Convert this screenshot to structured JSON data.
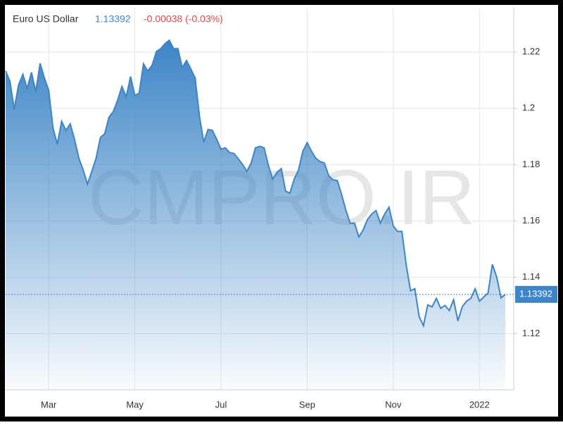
{
  "chart_data": {
    "type": "area",
    "title": "Euro US Dollar",
    "change": "-0.00038 (-0.03%)",
    "watermark": "CMPRO.IR",
    "color": "#3d85c6",
    "categories": [
      null,
      null,
      null,
      null,
      null,
      null,
      null,
      null,
      null,
      null,
      "Mar",
      null,
      null,
      null,
      null,
      null,
      null,
      null,
      null,
      null,
      null,
      null,
      null,
      null,
      null,
      null,
      null,
      null,
      null,
      null,
      "May",
      null,
      null,
      null,
      null,
      null,
      null,
      null,
      null,
      null,
      null,
      null,
      null,
      null,
      null,
      null,
      null,
      null,
      null,
      null,
      "Jul",
      null,
      null,
      null,
      null,
      null,
      null,
      null,
      null,
      null,
      null,
      null,
      null,
      null,
      null,
      null,
      null,
      null,
      null,
      null,
      "Sep",
      null,
      null,
      null,
      null,
      null,
      null,
      null,
      null,
      null,
      null,
      null,
      null,
      null,
      null,
      null,
      null,
      null,
      null,
      null,
      "Nov",
      null,
      null,
      null,
      null,
      null,
      null,
      null,
      null,
      null,
      null,
      null,
      null,
      null,
      null,
      null,
      null,
      null,
      null,
      null,
      "2022",
      null,
      null,
      null,
      null,
      null,
      null
    ],
    "values": [
      1.2133,
      1.2096,
      1.1997,
      1.2083,
      1.2121,
      1.2071,
      1.2128,
      1.2059,
      1.216,
      1.2108,
      1.2064,
      1.193,
      1.1873,
      1.1954,
      1.1922,
      1.1945,
      1.189,
      1.1823,
      1.1781,
      1.1731,
      1.1776,
      1.1823,
      1.1897,
      1.191,
      1.1969,
      1.1989,
      1.2029,
      1.2078,
      1.2041,
      1.2113,
      1.2046,
      1.2054,
      1.2158,
      1.2133,
      1.2153,
      1.2202,
      1.2212,
      1.223,
      1.2242,
      1.2212,
      1.2212,
      1.2145,
      1.217,
      1.214,
      1.2108,
      1.1972,
      1.188,
      1.1925,
      1.1922,
      1.189,
      1.1855,
      1.186,
      1.1843,
      1.184,
      1.1821,
      1.1801,
      1.1776,
      1.1806,
      1.186,
      1.1865,
      1.186,
      1.1798,
      1.1749,
      1.1773,
      1.1786,
      1.1706,
      1.1699,
      1.1749,
      1.1781,
      1.1848,
      1.1878,
      1.1848,
      1.1823,
      1.1811,
      1.1806,
      1.1761,
      1.1746,
      1.1744,
      1.1694,
      1.1637,
      1.1592,
      1.1592,
      1.1543,
      1.1568,
      1.1605,
      1.1625,
      1.1637,
      1.1592,
      1.1625,
      1.1649,
      1.1582,
      1.1563,
      1.1563,
      1.1444,
      1.1352,
      1.1359,
      1.126,
      1.1228,
      1.1302,
      1.1295,
      1.1325,
      1.129,
      1.13,
      1.1282,
      1.132,
      1.1245,
      1.1295,
      1.1315,
      1.1325,
      1.1359,
      1.1315,
      1.133,
      1.1344,
      1.1446,
      1.1401,
      1.1327,
      1.13392
    ],
    "ylim": [
      1.1,
      1.236
    ],
    "yticks": [
      1.12,
      1.14,
      1.16,
      1.18,
      1.2,
      1.22
    ],
    "grid": true
  }
}
